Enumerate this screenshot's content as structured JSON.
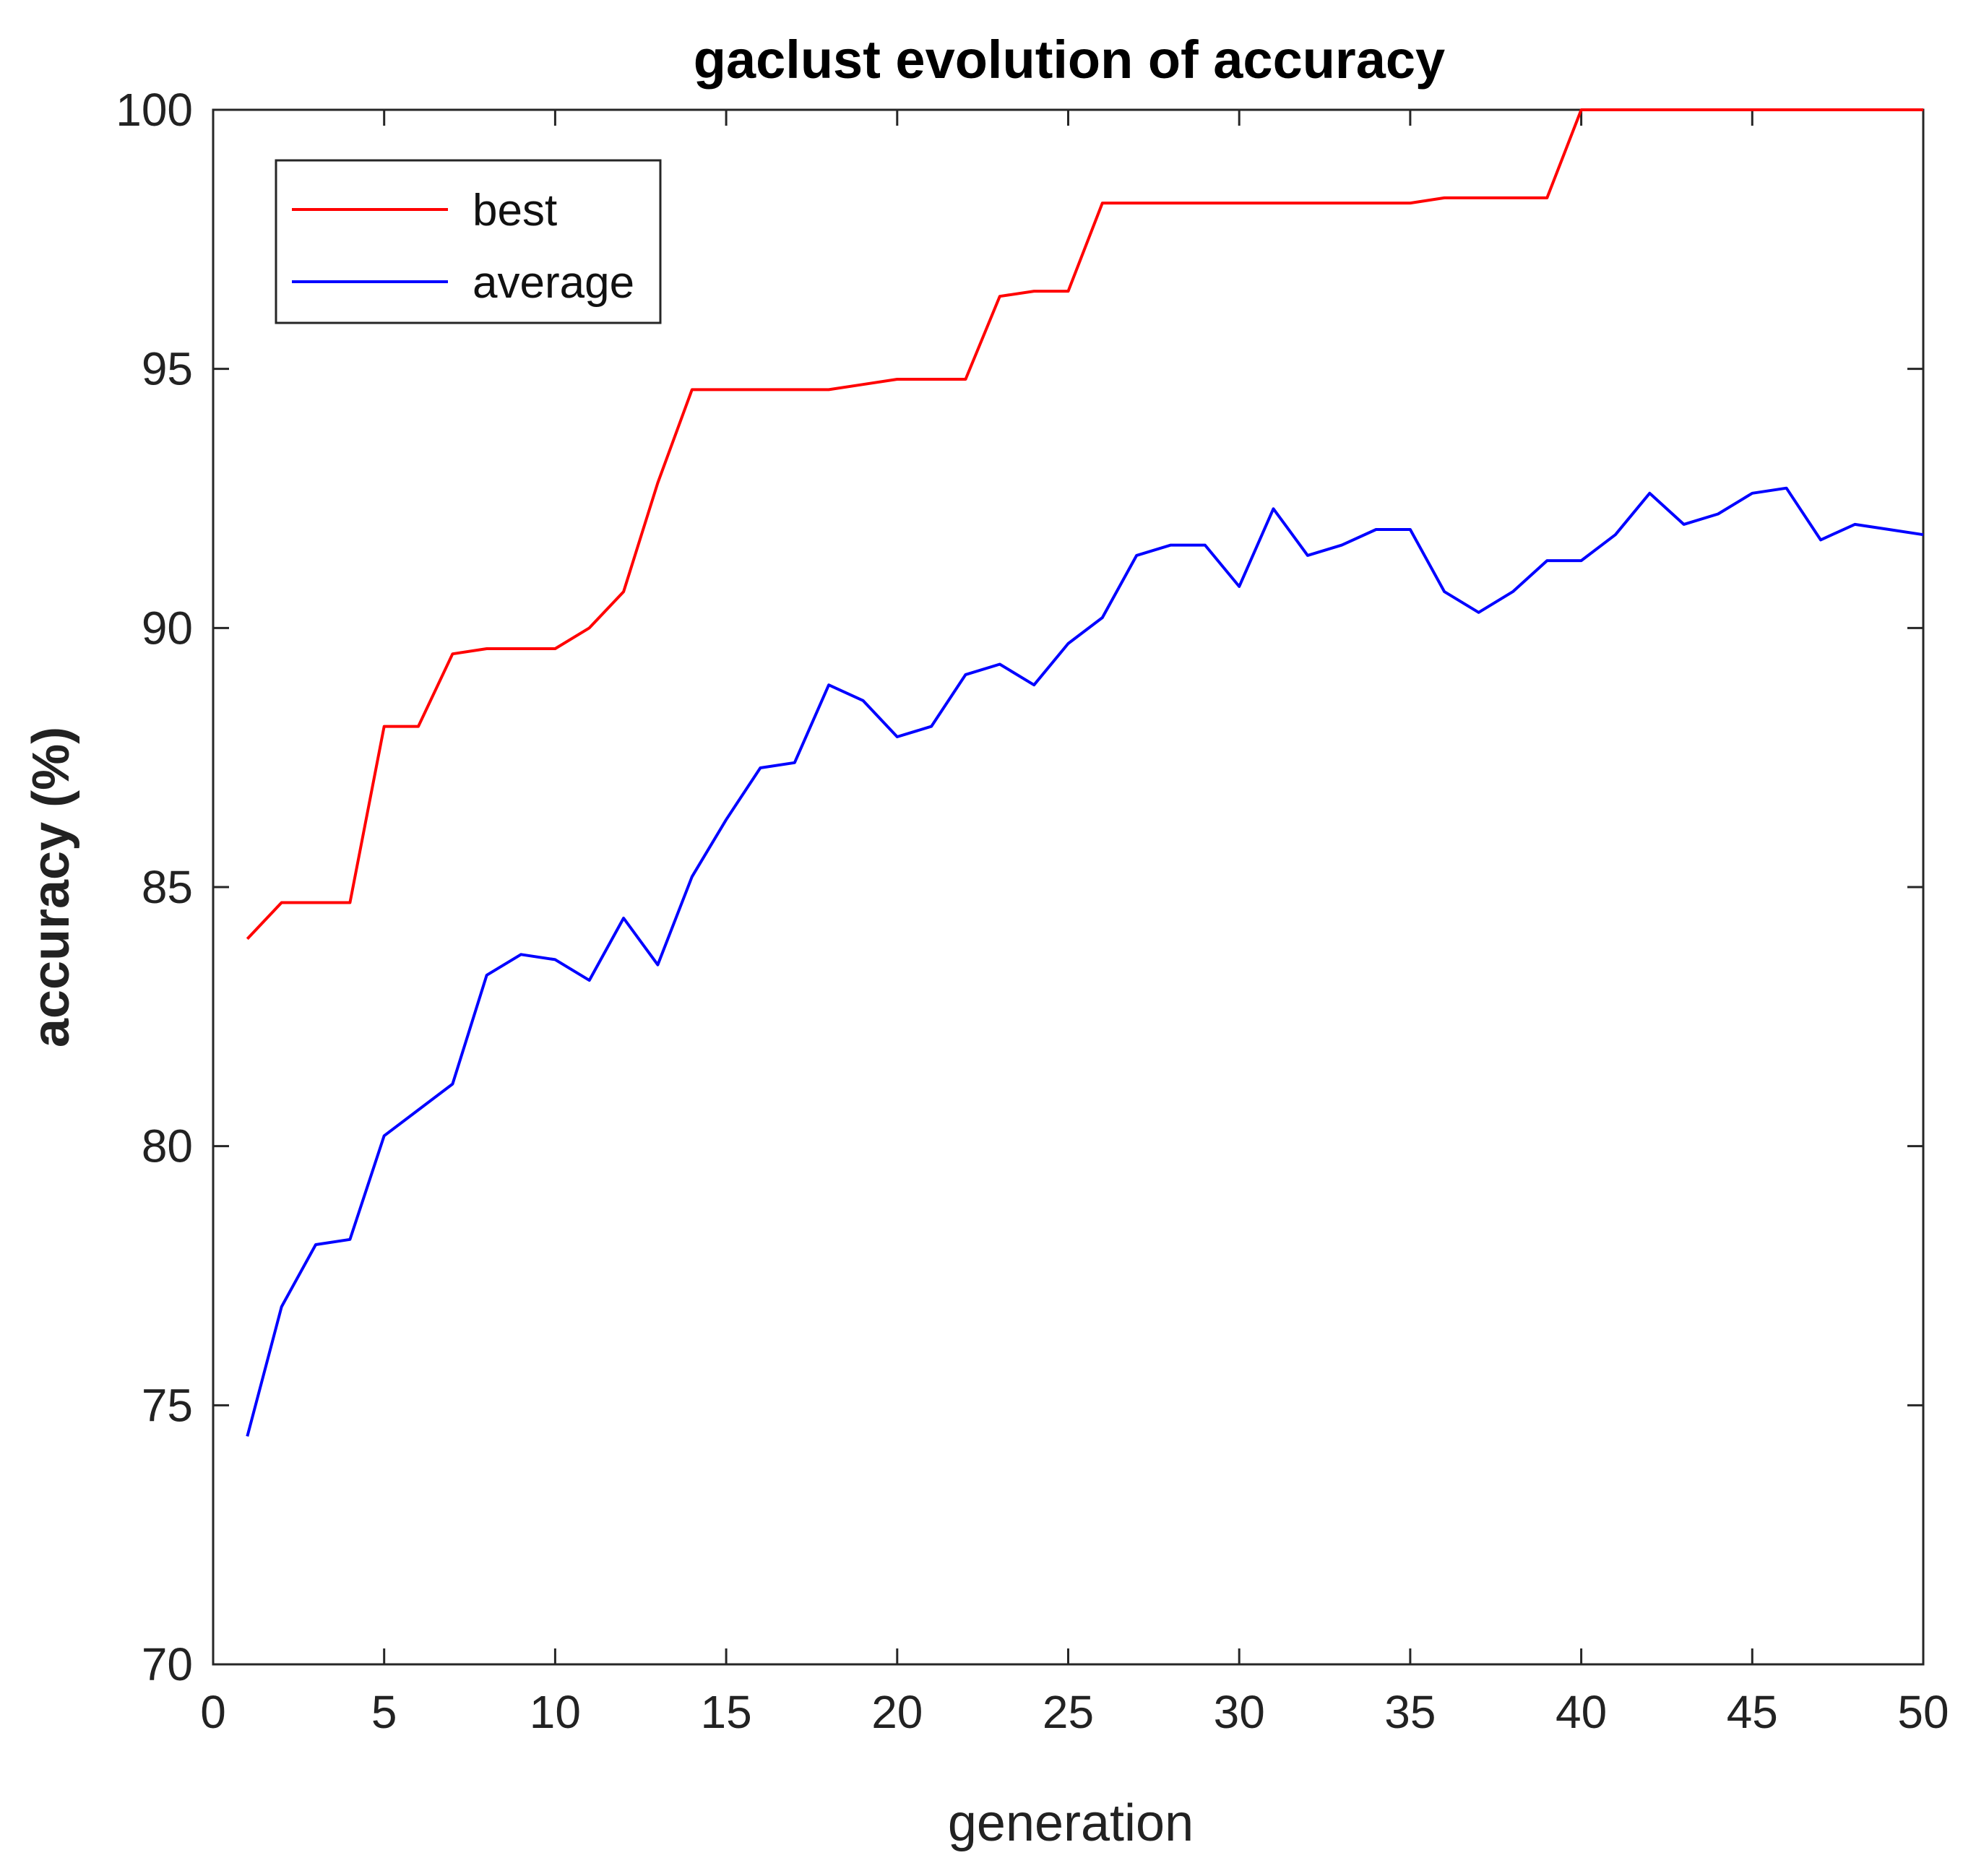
{
  "chart_data": {
    "type": "line",
    "title": "gaclust evolution of accuracy",
    "xlabel": "generation",
    "ylabel": "accuracy (%)",
    "xlim": [
      0,
      50
    ],
    "ylim": [
      70,
      100
    ],
    "xticks": [
      0,
      5,
      10,
      15,
      20,
      25,
      30,
      35,
      40,
      45,
      50
    ],
    "yticks": [
      70,
      75,
      80,
      85,
      90,
      95,
      100
    ],
    "grid": false,
    "legend_position": "top-left",
    "x": [
      1,
      2,
      3,
      4,
      5,
      6,
      7,
      8,
      9,
      10,
      11,
      12,
      13,
      14,
      15,
      16,
      17,
      18,
      19,
      20,
      21,
      22,
      23,
      24,
      25,
      26,
      27,
      28,
      29,
      30,
      31,
      32,
      33,
      34,
      35,
      36,
      37,
      38,
      39,
      40,
      41,
      42,
      43,
      44,
      45,
      46,
      47,
      48,
      49,
      50
    ],
    "series": [
      {
        "name": "best",
        "color": "#ff0000",
        "values": [
          84.0,
          84.7,
          84.7,
          84.7,
          88.1,
          88.1,
          89.5,
          89.6,
          89.6,
          89.6,
          90.0,
          90.7,
          92.8,
          94.6,
          94.6,
          94.6,
          94.6,
          94.6,
          94.7,
          94.8,
          94.8,
          94.8,
          96.4,
          96.5,
          96.5,
          98.2,
          98.2,
          98.2,
          98.2,
          98.2,
          98.2,
          98.2,
          98.2,
          98.2,
          98.2,
          98.3,
          98.3,
          98.3,
          98.3,
          100,
          100,
          100,
          100,
          100,
          100,
          100,
          100,
          100,
          100,
          100
        ]
      },
      {
        "name": "average",
        "color": "#0000ff",
        "values": [
          74.4,
          76.9,
          78.1,
          78.2,
          80.2,
          80.7,
          81.2,
          83.3,
          83.7,
          83.6,
          83.2,
          84.4,
          83.5,
          85.2,
          86.3,
          87.3,
          87.4,
          88.9,
          88.6,
          87.9,
          88.1,
          89.1,
          89.3,
          88.9,
          89.7,
          90.2,
          91.4,
          91.6,
          91.6,
          90.8,
          92.3,
          91.4,
          91.6,
          91.9,
          91.9,
          90.7,
          90.3,
          90.7,
          91.3,
          91.3,
          91.8,
          92.6,
          92.0,
          92.2,
          92.6,
          92.7,
          91.7,
          92.0,
          91.9,
          91.8
        ]
      }
    ]
  }
}
